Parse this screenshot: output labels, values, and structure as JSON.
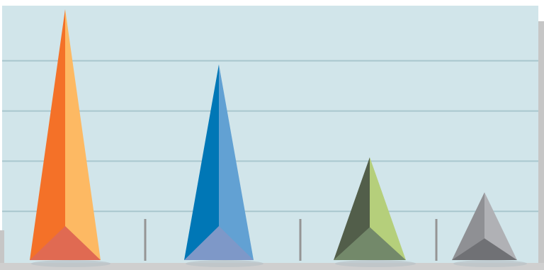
{
  "chart_data": {
    "type": "bar",
    "style": "3d-pyramid",
    "categories": [
      "",
      "",
      "",
      ""
    ],
    "values": [
      100,
      78,
      41,
      27
    ],
    "ylim": [
      0,
      100
    ],
    "grid": true,
    "colors": {
      "background": "#d1e5ea",
      "grid": "#a9c7ce",
      "side_wall": "#c6c6c6",
      "floor": "#cfcfcf",
      "divider": "#959595",
      "shadow": "#b9c2c6"
    },
    "series_colors": [
      {
        "left": "#f47128",
        "right": "#fdb963",
        "base": "#e06a52"
      },
      {
        "left": "#0077b6",
        "right": "#62a1d3",
        "base": "#7e98c8"
      },
      {
        "left": "#525e4a",
        "right": "#b5cf7b",
        "base": "#73896a"
      },
      {
        "left": "#8f9094",
        "right": "#b0b1b5",
        "base": "#707175"
      }
    ]
  }
}
